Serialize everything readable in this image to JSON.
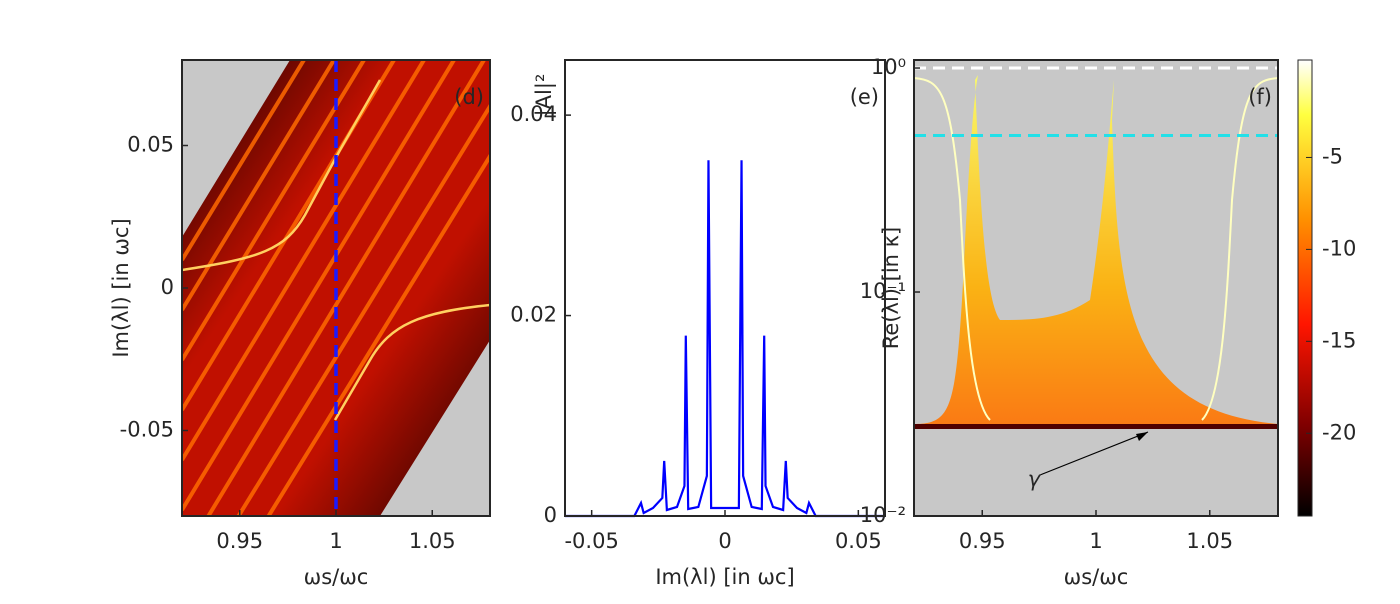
{
  "chart_data": [
    {
      "type": "heatmap",
      "annotation": "(d)",
      "xlabel": "ωs/ωc",
      "ylabel": "Im(λl) [in ωc]",
      "xlim": [
        0.92,
        1.08
      ],
      "xticks": [
        0.95,
        1,
        1.05
      ],
      "ylim": [
        -0.08,
        0.08
      ],
      "yticks": [
        -0.05,
        0,
        0.05
      ],
      "vlines": [
        {
          "value": 1,
          "color": "#1a1aff"
        }
      ]
    },
    {
      "type": "line",
      "annotation": "(e)",
      "xlabel": "Im(λl) [in ωc]",
      "ylabel": "|Al|²",
      "xlim": [
        -0.06,
        0.06
      ],
      "xticks": [
        -0.05,
        0,
        0.05
      ],
      "ylim": [
        0,
        0.0455
      ],
      "yticks": [
        0,
        0.02,
        0.04
      ],
      "x": [
        -0.06,
        -0.034,
        -0.0315,
        -0.0305,
        -0.027,
        -0.0235,
        -0.0228,
        -0.0218,
        -0.018,
        -0.0152,
        -0.0147,
        -0.0138,
        -0.01,
        -0.0068,
        -0.0062,
        -0.0052,
        0,
        0.0052,
        0.0062,
        0.0068,
        0.01,
        0.0138,
        0.0147,
        0.0152,
        0.018,
        0.0218,
        0.0228,
        0.0235,
        0.027,
        0.0305,
        0.0315,
        0.034,
        0.06
      ],
      "series": [
        {
          "color": "#0000ff",
          "values": [
            0,
            0,
            0.0013,
            0.0003,
            0.0008,
            0.0018,
            0.0055,
            0.0006,
            0.0009,
            0.003,
            0.018,
            0.0007,
            0.0009,
            0.004,
            0.0355,
            0.0008,
            0.0008,
            0.0008,
            0.0355,
            0.004,
            0.0009,
            0.0007,
            0.018,
            0.003,
            0.0009,
            0.0006,
            0.0055,
            0.0018,
            0.0008,
            0.0003,
            0.0013,
            0,
            0
          ]
        }
      ]
    },
    {
      "type": "scatter",
      "annotation": "(f)",
      "xlabel": "ωs/ωc",
      "ylabel": "Re(λl) [in κ]",
      "note": "γ",
      "xlim": [
        0.92,
        1.08
      ],
      "xticks": [
        0.95,
        1,
        1.05
      ],
      "ylog": true,
      "ylim": [
        0.01,
        1.086
      ],
      "yticks": [
        {
          "value": 0.01,
          "label": "10⁻²"
        },
        {
          "value": 0.1,
          "label": "10⁻¹"
        },
        {
          "value": 1,
          "label": "10⁰"
        }
      ],
      "hlines": [
        {
          "value": 1,
          "color": "#ffffff"
        },
        {
          "value": 0.5,
          "color": "#22e0e8"
        }
      ],
      "colorbar": {
        "lim": [
          -24.5,
          0.3
        ],
        "ticks": [
          -5,
          -10,
          -15,
          -20
        ]
      }
    }
  ]
}
